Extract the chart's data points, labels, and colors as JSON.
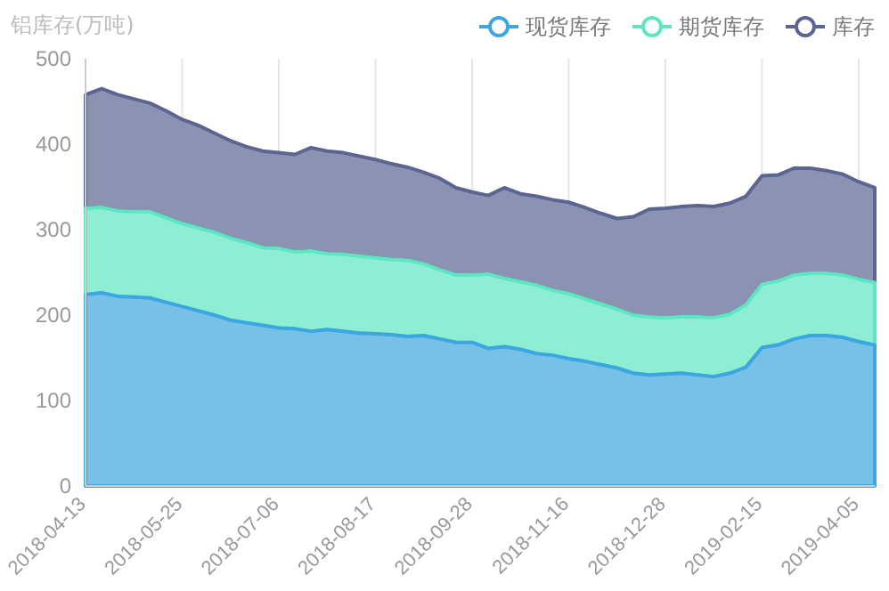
{
  "chart_data": {
    "type": "area",
    "stacked": true,
    "ylabel": "铝库存(万吨)",
    "categories": [
      "2018-04-13",
      null,
      null,
      null,
      null,
      null,
      "2018-05-25",
      null,
      null,
      null,
      null,
      null,
      "2018-07-06",
      null,
      null,
      null,
      null,
      null,
      "2018-08-17",
      null,
      null,
      null,
      null,
      null,
      "2018-09-28",
      null,
      null,
      null,
      null,
      null,
      "2018-11-16",
      null,
      null,
      null,
      null,
      null,
      "2018-12-28",
      null,
      null,
      null,
      null,
      null,
      "2019-02-15",
      null,
      null,
      null,
      null,
      null,
      "2019-04-05",
      null
    ],
    "series": [
      {
        "name": "现货库存",
        "color": "#3ca6e0",
        "values": [
          224,
          226,
          222,
          221,
          220,
          215,
          210,
          205,
          200,
          194,
          191,
          188,
          185,
          184,
          181,
          183,
          181,
          179,
          178,
          177,
          175,
          176,
          172,
          168,
          168,
          161,
          163,
          160,
          155,
          153,
          149,
          146,
          142,
          138,
          132,
          130,
          131,
          132,
          130,
          128,
          132,
          139,
          162,
          165,
          172,
          176,
          176,
          174,
          169,
          165
        ]
      },
      {
        "name": "期货库存",
        "color": "#5ee6c2",
        "values": [
          101,
          100,
          100,
          100,
          101,
          99,
          97,
          97,
          97,
          96,
          94,
          91,
          93,
          90,
          94,
          89,
          90,
          90,
          89,
          88,
          89,
          84,
          81,
          79,
          79,
          87,
          80,
          79,
          80,
          76,
          76,
          73,
          71,
          69,
          68,
          68,
          66,
          66,
          68,
          69,
          69,
          73,
          74,
          75,
          75,
          73,
          73,
          73,
          73,
          73
        ]
      },
      {
        "name": "库存",
        "color": "#5b6591",
        "values": [
          133,
          139,
          136,
          132,
          127,
          125,
          122,
          120,
          116,
          114,
          112,
          113,
          112,
          114,
          121,
          120,
          119,
          117,
          115,
          112,
          109,
          107,
          107,
          102,
          97,
          92,
          106,
          103,
          104,
          106,
          107,
          107,
          106,
          106,
          115,
          126,
          128,
          129,
          130,
          130,
          130,
          127,
          127,
          124,
          125,
          123,
          120,
          118,
          114,
          111
        ]
      }
    ],
    "ylim": [
      0,
      500
    ],
    "yticks": [
      0,
      100,
      200,
      300,
      400,
      500
    ],
    "grid": "x",
    "legend": "top right"
  }
}
